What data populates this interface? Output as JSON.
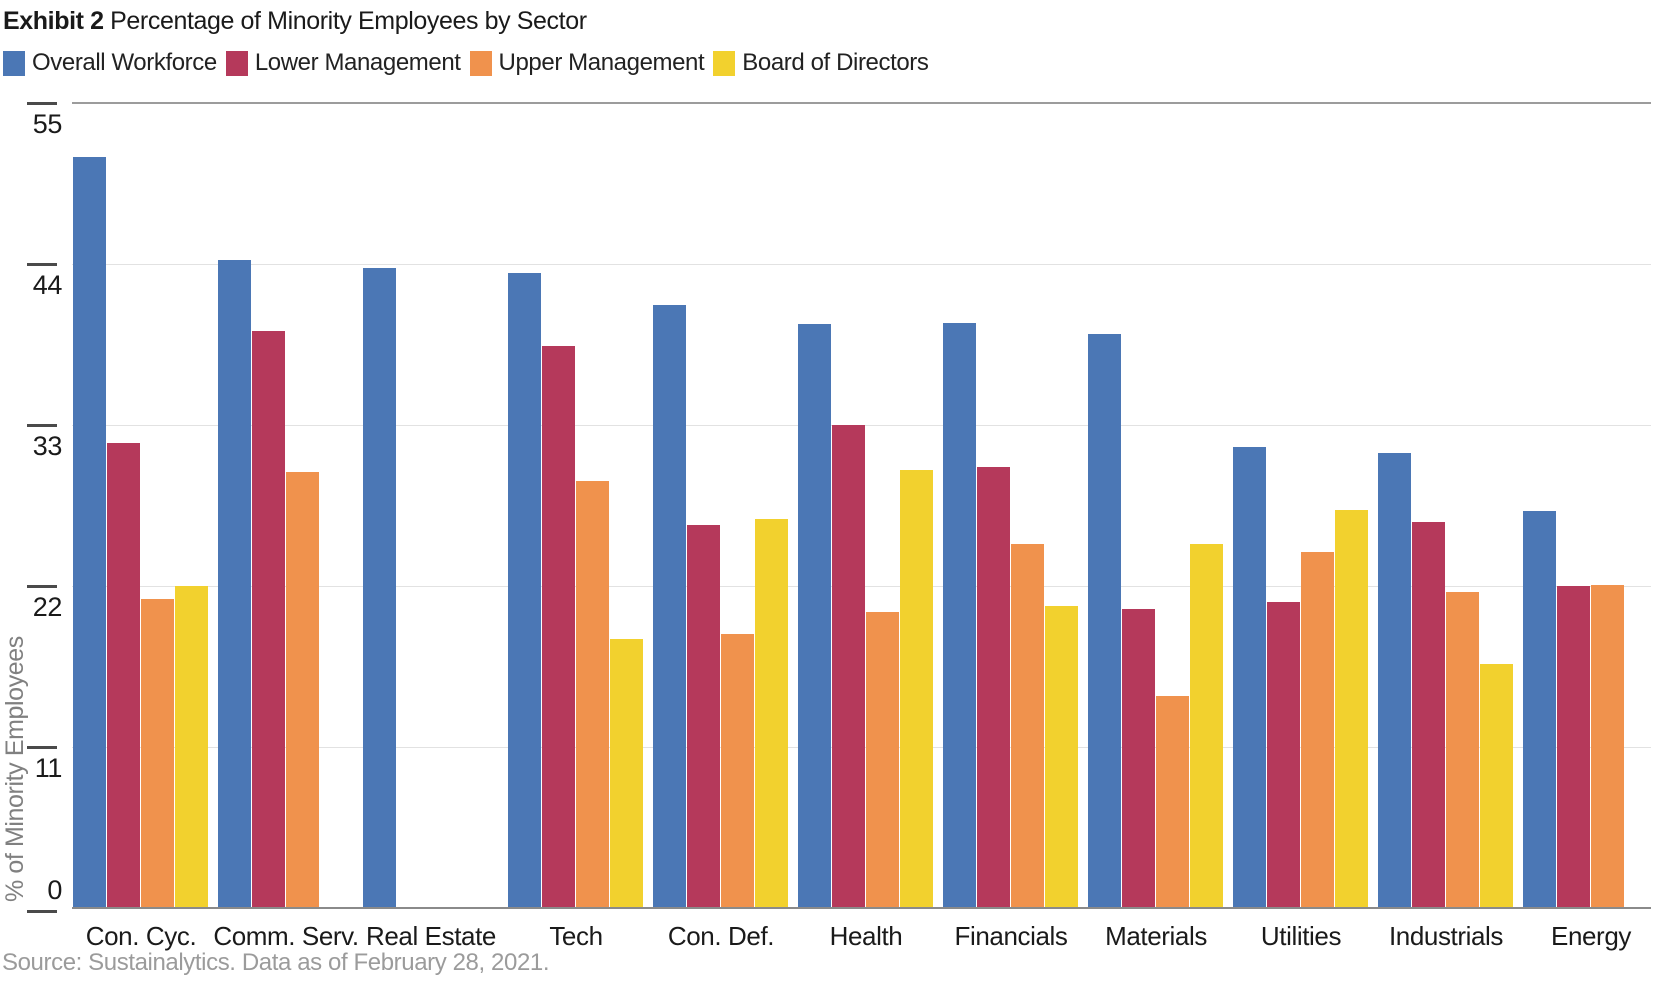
{
  "title": {
    "exhibit": "Exhibit 2",
    "rest": " Percentage of Minority Employees by Sector"
  },
  "source": {
    "text": "Source: Sustainalytics. Data as of February 28, 2021."
  },
  "chart_data": {
    "type": "bar",
    "title": "Exhibit 2 Percentage of Minority Employees by Sector",
    "xlabel": "",
    "ylabel": "% of Minority Employees",
    "ylim": [
      0,
      55
    ],
    "yticks": [
      0,
      11,
      22,
      33,
      44,
      55
    ],
    "grid": true,
    "legend_position": "top",
    "categories": [
      "Con. Cyc.",
      "Comm. Serv.",
      "Real Estate",
      "Tech",
      "Con. Def.",
      "Health",
      "Financials",
      "Materials",
      "Utilities",
      "Industrials",
      "Energy"
    ],
    "series": [
      {
        "name": "Overall Workforce",
        "color": "#4B77B5",
        "values": [
          51.3,
          44.3,
          43.7,
          43.4,
          41.2,
          39.9,
          40.0,
          39.2,
          31.5,
          31.1,
          27.1
        ]
      },
      {
        "name": "Lower Management",
        "color": "#B5395B",
        "values": [
          31.8,
          39.4,
          null,
          38.4,
          26.2,
          33.0,
          30.1,
          20.4,
          20.9,
          26.4,
          22.0
        ]
      },
      {
        "name": "Upper Management",
        "color": "#F0924D",
        "values": [
          21.1,
          29.8,
          null,
          29.2,
          18.7,
          20.2,
          24.9,
          14.5,
          24.3,
          21.6,
          22.1
        ]
      },
      {
        "name": "Board of Directors",
        "color": "#F2D12E",
        "values": [
          22.0,
          null,
          null,
          18.4,
          26.6,
          29.9,
          20.6,
          24.9,
          27.2,
          16.7,
          null
        ]
      }
    ]
  }
}
